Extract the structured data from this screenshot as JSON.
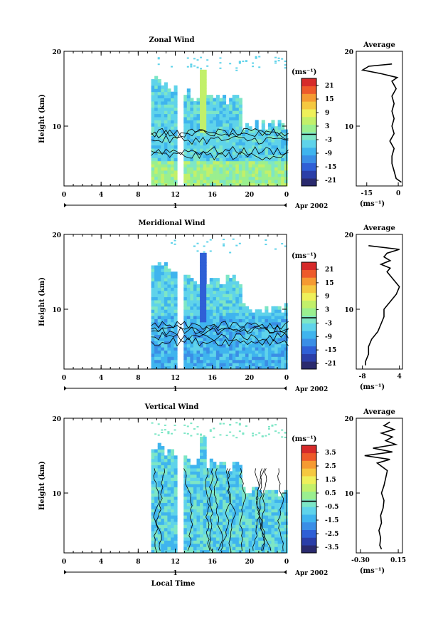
{
  "figure": {
    "xlabel": "Local Time",
    "date_label": "Apr 2002",
    "day_label": "1",
    "x_ticks": [
      "0",
      "4",
      "8",
      "12",
      "16",
      "20",
      "0"
    ],
    "xlim": [
      0,
      24
    ],
    "ylim": [
      2,
      20
    ],
    "height_label": "Height (km)",
    "height_ticks": [
      "10",
      "20"
    ],
    "average_title": "Average",
    "colorbar_unit": "(ms⁻¹)",
    "profile_unit": "(ms⁻¹)"
  },
  "chart_data": [
    {
      "type": "heatmap",
      "title": "Zonal Wind",
      "ylabel": "Height (km)",
      "xlabel": "",
      "xlim": [
        0,
        24
      ],
      "ylim": [
        2,
        20
      ],
      "colorbar_ticks": [
        "21",
        "15",
        "9",
        "3",
        "-3",
        "-9",
        "-15",
        "-21"
      ],
      "colorbar_range": [
        -24,
        24
      ],
      "data_coverage_start_hour": 9.4,
      "gap_hour": 12.3,
      "average_profile": {
        "title": "Average",
        "xlabel": "(ms⁻¹)",
        "xticks": [
          "-15",
          "0"
        ],
        "xlim": [
          -20,
          2
        ],
        "heights": [
          2.5,
          3,
          4,
          5,
          6,
          7,
          8,
          9,
          10,
          11,
          12,
          13,
          14,
          15,
          15.5,
          16,
          16.5,
          17,
          17.5,
          18,
          18.3
        ],
        "values": [
          1.5,
          -1,
          -2,
          -3,
          -3,
          -2,
          -4,
          -2,
          -3,
          -2,
          -3,
          -2,
          -3,
          -1,
          -2,
          -3,
          -0.5,
          -8,
          -17,
          -14,
          -3
        ]
      }
    },
    {
      "type": "heatmap",
      "title": "Meridional Wind",
      "ylabel": "Height (km)",
      "xlabel": "",
      "xlim": [
        0,
        24
      ],
      "ylim": [
        2,
        20
      ],
      "colorbar_ticks": [
        "21",
        "15",
        "9",
        "3",
        "-3",
        "-9",
        "-15",
        "-21"
      ],
      "colorbar_range": [
        -24,
        24
      ],
      "data_coverage_start_hour": 9.4,
      "gap_hour": 12.3,
      "average_profile": {
        "title": "Average",
        "xlabel": "(ms⁻¹)",
        "xticks": [
          "-8",
          "4"
        ],
        "xlim": [
          -10,
          5
        ],
        "heights": [
          2.5,
          3,
          4,
          5,
          6,
          7,
          8,
          9,
          10,
          11,
          12,
          13,
          14,
          15,
          15.5,
          16,
          16.5,
          17,
          17.5,
          18,
          18.5
        ],
        "values": [
          -7,
          -7,
          -6,
          -6,
          -5,
          -3,
          -2,
          -1,
          -1,
          1,
          3,
          4,
          2,
          0,
          1,
          -2,
          1,
          -1,
          0,
          4,
          -6
        ]
      }
    },
    {
      "type": "heatmap",
      "title": "Vertical Wind",
      "ylabel": "Height (km)",
      "xlabel": "Local Time",
      "xlim": [
        0,
        24
      ],
      "ylim": [
        2,
        20
      ],
      "colorbar_ticks": [
        "3.5",
        "2.5",
        "1.5",
        "0.5",
        "-0.5",
        "-1.5",
        "-2.5",
        "-3.5"
      ],
      "colorbar_range": [
        -4,
        4
      ],
      "data_coverage_start_hour": 9.4,
      "gap_hour": 12.3,
      "average_profile": {
        "title": "Average",
        "xlabel": "(ms⁻¹)",
        "xticks": [
          "-0.30",
          "0.15"
        ],
        "xlim": [
          -0.35,
          0.2
        ],
        "heights": [
          2.5,
          3,
          4,
          5,
          6,
          7,
          8,
          9,
          10,
          11,
          12,
          13,
          14,
          14.5,
          15,
          15.5,
          16,
          16.5,
          17,
          17.5,
          18,
          18.5,
          19,
          19.5
        ],
        "values": [
          -0.05,
          -0.07,
          -0.06,
          -0.08,
          -0.05,
          -0.06,
          -0.03,
          -0.02,
          -0.05,
          -0.02,
          0.0,
          0.02,
          -0.1,
          0.05,
          -0.25,
          0.08,
          -0.15,
          0.12,
          0.0,
          0.08,
          -0.05,
          0.1,
          -0.02,
          0.05
        ]
      }
    }
  ]
}
